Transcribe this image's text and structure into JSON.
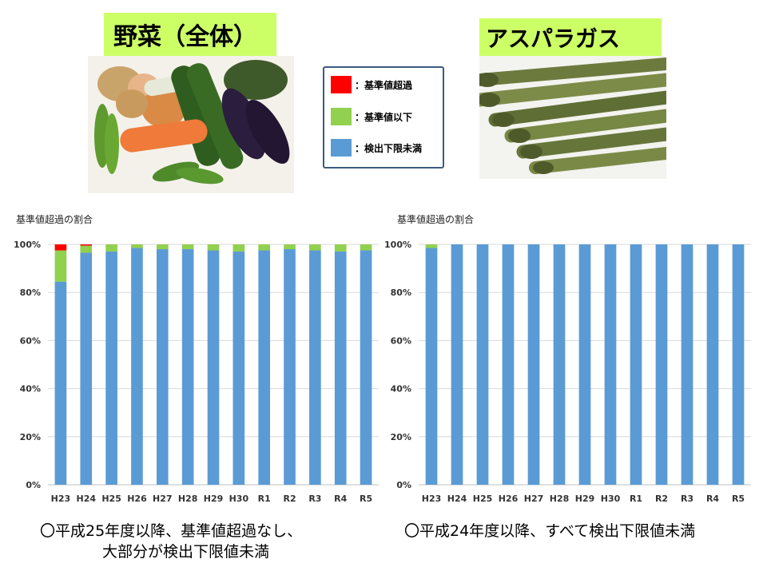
{
  "titles": {
    "left": "野菜（全体）",
    "right": "アスパラガス"
  },
  "legend": [
    {
      "label": "：基準値超過",
      "color": "#ff0000"
    },
    {
      "label": "：基準値以下",
      "color": "#92d050"
    },
    {
      "label": "：検出下限未満",
      "color": "#5b9bd5"
    }
  ],
  "captions": {
    "left_line1": "〇平成25年度以降、基準値超過なし、",
    "left_line2": "大部分が検出下限値未満",
    "right": "〇平成24年度以降、すべて検出下限値未満"
  },
  "chart_data": [
    {
      "type": "bar",
      "stacked": true,
      "title": "基準値超過の割合",
      "xlabel": "",
      "ylabel": "",
      "ylim": [
        0,
        100
      ],
      "yticks": [
        "0%",
        "20%",
        "40%",
        "60%",
        "80%",
        "100%"
      ],
      "grid": true,
      "categories": [
        "H23",
        "H24",
        "H25",
        "H26",
        "H27",
        "H28",
        "H29",
        "H30",
        "R1",
        "R2",
        "R3",
        "R4",
        "R5"
      ],
      "series": [
        {
          "name": "検出下限未満",
          "color": "#5b9bd5",
          "values": [
            84.5,
            96.5,
            97,
            98.5,
            98,
            98,
            97.5,
            97,
            97.5,
            98,
            97.5,
            97,
            97.5
          ]
        },
        {
          "name": "基準値以下",
          "color": "#92d050",
          "values": [
            13,
            3,
            3,
            1.5,
            2,
            2,
            2.5,
            3,
            2.5,
            2,
            2.5,
            3,
            2.5
          ]
        },
        {
          "name": "基準値超過",
          "color": "#ff0000",
          "values": [
            2.5,
            0.5,
            0,
            0,
            0,
            0,
            0,
            0,
            0,
            0,
            0,
            0,
            0
          ]
        }
      ]
    },
    {
      "type": "bar",
      "stacked": true,
      "title": "基準値超過の割合",
      "xlabel": "",
      "ylabel": "",
      "ylim": [
        0,
        100
      ],
      "yticks": [
        "0%",
        "20%",
        "40%",
        "60%",
        "80%",
        "100%"
      ],
      "grid": true,
      "categories": [
        "H23",
        "H24",
        "H25",
        "H26",
        "H27",
        "H28",
        "H29",
        "H30",
        "R1",
        "R2",
        "R3",
        "R4",
        "R5"
      ],
      "series": [
        {
          "name": "検出下限未満",
          "color": "#5b9bd5",
          "values": [
            98.5,
            100,
            100,
            100,
            100,
            100,
            100,
            100,
            100,
            100,
            100,
            100,
            100
          ]
        },
        {
          "name": "基準値以下",
          "color": "#92d050",
          "values": [
            1.5,
            0,
            0,
            0,
            0,
            0,
            0,
            0,
            0,
            0,
            0,
            0,
            0
          ]
        },
        {
          "name": "基準値超過",
          "color": "#ff0000",
          "values": [
            0,
            0,
            0,
            0,
            0,
            0,
            0,
            0,
            0,
            0,
            0,
            0,
            0
          ]
        }
      ]
    }
  ]
}
